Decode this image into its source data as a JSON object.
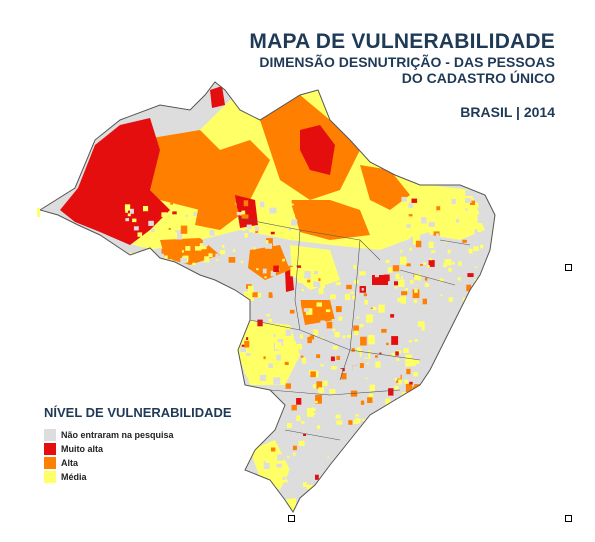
{
  "title": {
    "main": "MAPA DE VULNERABILIDADE",
    "line1": "DIMENSÃO DESNUTRIÇÃO - DAS PESSOAS",
    "line2": "DO CADASTRO ÚNICO",
    "year": "BRASIL | 2014"
  },
  "legend": {
    "title": "NÍVEL DE VULNERABILIDADE",
    "items": [
      {
        "label": "Não entraram na pesquisa",
        "color": "#dddddd"
      },
      {
        "label": "Muito alta",
        "color": "#e50e0e"
      },
      {
        "label": "Alta",
        "color": "#ff7f00"
      },
      {
        "label": "Média",
        "color": "#ffff66"
      }
    ]
  },
  "colors": {
    "none": "#dddddd",
    "very_high": "#e50e0e",
    "high": "#ff7f00",
    "medium": "#ffff66",
    "borders": "#555555"
  }
}
